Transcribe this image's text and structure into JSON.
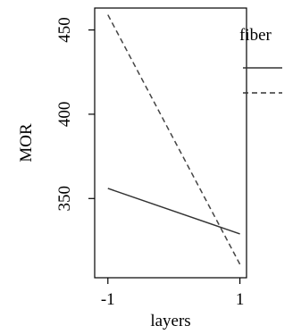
{
  "chart_data": {
    "type": "line",
    "title": "",
    "xlabel": "layers",
    "ylabel": "MOR",
    "x": [
      -1,
      1
    ],
    "x_ticks": [
      "-1",
      "1"
    ],
    "y_ticks": [
      350,
      400,
      450
    ],
    "xlim": [
      -1.2,
      1.1
    ],
    "ylim": [
      303,
      463
    ],
    "grid": false,
    "legend": {
      "title": "fiber",
      "placement": "right",
      "entries": [
        {
          "label": "",
          "style": "solid"
        },
        {
          "label": "",
          "style": "dashed"
        }
      ]
    },
    "series": [
      {
        "style": "solid",
        "values": [
          356,
          329
        ],
        "color": "#333333"
      },
      {
        "style": "dashed",
        "values": [
          459,
          311
        ],
        "color": "#444444"
      }
    ]
  }
}
